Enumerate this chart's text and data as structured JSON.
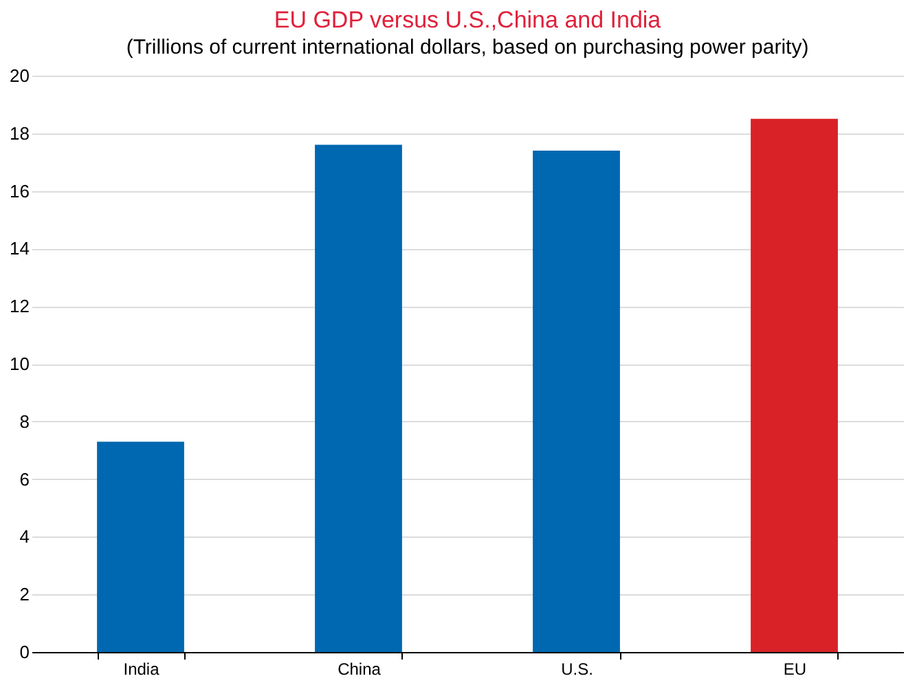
{
  "chart_data": {
    "type": "bar",
    "title": "EU GDP versus U.S.,China and India",
    "subtitle": "(Trillions of current international dollars, based on purchasing power parity)",
    "categories": [
      "India",
      "China",
      "U.S.",
      "EU"
    ],
    "values": [
      7.3,
      17.6,
      17.4,
      18.5
    ],
    "colors": [
      "#0068b0",
      "#0068b0",
      "#0068b0",
      "#d82228"
    ],
    "ylim": [
      0,
      20
    ],
    "yticks": [
      0,
      2,
      4,
      6,
      8,
      10,
      12,
      14,
      16,
      18,
      20
    ],
    "grid": "y"
  }
}
